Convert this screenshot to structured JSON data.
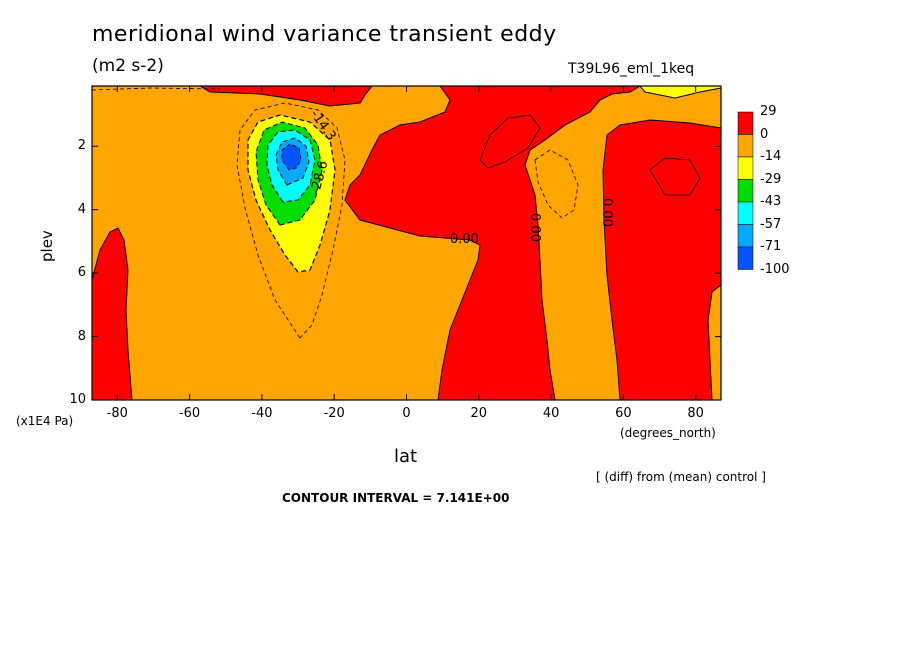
{
  "title": "meridional wind variance transient eddy",
  "units": "(m2 s-2)",
  "experiment": "T39L96_eml_1keq",
  "diff_note": "[ (diff) from (mean) control ]",
  "contour_interval": "CONTOUR INTERVAL = 7.141E+00",
  "chart_data": {
    "type": "heatmap",
    "xlabel": "lat",
    "xunit": "(degrees_north)",
    "ylabel": "plev",
    "yunit": "(x1E4 Pa)",
    "xlim": [
      -87,
      87
    ],
    "ylim": [
      10,
      0.1
    ],
    "xticks": [
      -80,
      -60,
      -40,
      -20,
      0,
      20,
      40,
      60,
      80
    ],
    "yticks": [
      2,
      4,
      6,
      8,
      10
    ],
    "contour_labels": [
      "-14.3",
      "-28.6",
      "0.00",
      "0.00",
      "0.00"
    ],
    "colorbar": {
      "labels": [
        "29",
        "0",
        "-14",
        "-29",
        "-43",
        "-57",
        "-71",
        "-100"
      ],
      "colors": [
        "#ff0000",
        "#ffa500",
        "#ffff00",
        "#00dd00",
        "#00ffff",
        "#00aaff",
        "#0055ff"
      ]
    },
    "minimum": {
      "lat": -32,
      "plev": 2.4,
      "approx_value": -90
    }
  }
}
